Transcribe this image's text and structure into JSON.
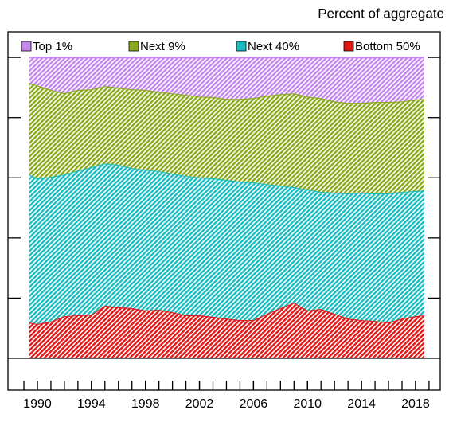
{
  "chart_data": {
    "type": "stacked_area",
    "ylabel": "Percent of aggregate",
    "x": [
      1989.4,
      1990,
      1991,
      1992,
      1993,
      1994,
      1995,
      1996,
      1997,
      1998,
      1999,
      2000,
      2001,
      2002,
      2003,
      2004,
      2005,
      2006,
      2007,
      2008,
      2009,
      2010,
      2011,
      2012,
      2013,
      2014,
      2015,
      2016,
      2017,
      2018,
      2018.65
    ],
    "series": [
      {
        "name": "Bottom 50%",
        "color": "#e01818",
        "values": [
          11.9,
          11.4,
          12.2,
          14,
          14.3,
          14.5,
          17.5,
          17,
          16.7,
          15.9,
          16.1,
          15.3,
          14.3,
          14.3,
          13.8,
          13.2,
          12.7,
          12.7,
          14.8,
          16.7,
          18.5,
          15.9,
          16.4,
          14.8,
          13.2,
          12.7,
          12.4,
          11.9,
          13.2,
          14,
          14.3
        ]
      },
      {
        "name": "Next 40%",
        "color": "#1cbcc0",
        "values": [
          49.2,
          48.4,
          48.1,
          47.1,
          48.1,
          49.0,
          47.3,
          47.3,
          46.5,
          46.8,
          46.1,
          46.1,
          46.3,
          45.8,
          46.0,
          46.1,
          46.0,
          45.8,
          43.1,
          40.7,
          38.4,
          40.2,
          38.9,
          40.2,
          41.6,
          42.3,
          42.4,
          42.9,
          42.1,
          41.6,
          41.5
        ]
      },
      {
        "name": "Next 9%",
        "color": "#8aaa1c",
        "values": [
          30.4,
          30.9,
          28.9,
          27.0,
          26.8,
          25.9,
          25.7,
          25.6,
          26.2,
          26.5,
          26.4,
          26.7,
          27.0,
          26.9,
          27.0,
          26.9,
          27.5,
          28.0,
          29.4,
          30.4,
          31.2,
          30.9,
          31.2,
          30.4,
          30.1,
          29.9,
          30.4,
          30.4,
          30.1,
          30.4,
          30.4
        ]
      },
      {
        "name": "Top 1%",
        "color": "#c487ee",
        "values": [
          8.5,
          9.3,
          10.8,
          11.9,
          10.8,
          10.6,
          9.5,
          10.1,
          10.6,
          10.8,
          11.4,
          11.9,
          12.4,
          13.0,
          13.2,
          13.8,
          13.8,
          13.5,
          12.7,
          12.2,
          11.9,
          13.0,
          13.5,
          14.6,
          15.1,
          15.1,
          14.8,
          14.8,
          14.6,
          14.0,
          13.8
        ]
      }
    ],
    "legend_order": [
      3,
      2,
      1,
      0
    ],
    "xlim": [
      1987.82,
      2019.83
    ],
    "xticks": [
      1990,
      1994,
      1998,
      2002,
      2006,
      2010,
      2014,
      2018
    ],
    "ylim": [
      0,
      108.5
    ],
    "yticks": [
      0,
      20,
      40,
      60,
      80,
      100
    ],
    "hatch": true
  }
}
